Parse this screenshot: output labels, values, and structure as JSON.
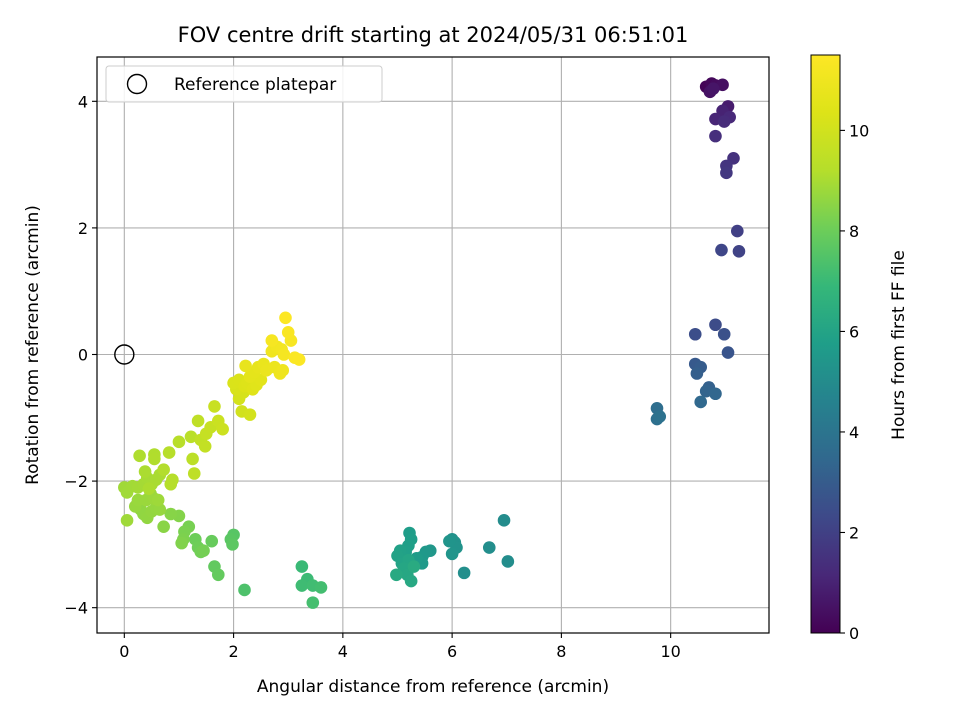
{
  "chart_data": {
    "type": "scatter",
    "title": "FOV centre drift starting at 2024/05/31 06:51:01",
    "xlabel": "Angular distance from reference (arcmin)",
    "ylabel": "Rotation from reference (arcmin)",
    "xlim": [
      -0.5,
      11.8
    ],
    "ylim": [
      -4.4,
      4.7
    ],
    "xticks": [
      0,
      2,
      4,
      6,
      8,
      10
    ],
    "yticks": [
      -4,
      -2,
      0,
      2,
      4
    ],
    "grid": true,
    "legend": {
      "placement": "top-left",
      "entries": [
        "Reference platepar"
      ]
    },
    "reference_point": {
      "x": 0,
      "y": 0
    },
    "colorbar": {
      "label": "Hours from first FF file",
      "range": [
        0,
        11.5
      ],
      "ticks": [
        0,
        2,
        4,
        6,
        8,
        10
      ],
      "colormap": "viridis"
    },
    "points": [
      {
        "x": 10.65,
        "y": 4.23,
        "c": 0.1
      },
      {
        "x": 10.75,
        "y": 4.28,
        "c": 0.2
      },
      {
        "x": 10.82,
        "y": 4.25,
        "c": 0.3
      },
      {
        "x": 10.95,
        "y": 4.26,
        "c": 0.4
      },
      {
        "x": 10.72,
        "y": 4.15,
        "c": 0.5
      },
      {
        "x": 10.78,
        "y": 4.2,
        "c": 0.6
      },
      {
        "x": 11.05,
        "y": 3.92,
        "c": 0.8
      },
      {
        "x": 11.0,
        "y": 3.78,
        "c": 0.9
      },
      {
        "x": 10.95,
        "y": 3.85,
        "c": 1.0
      },
      {
        "x": 10.82,
        "y": 3.72,
        "c": 1.1
      },
      {
        "x": 11.08,
        "y": 3.75,
        "c": 1.2
      },
      {
        "x": 10.98,
        "y": 3.68,
        "c": 1.3
      },
      {
        "x": 10.82,
        "y": 3.45,
        "c": 1.4
      },
      {
        "x": 11.15,
        "y": 3.1,
        "c": 1.5
      },
      {
        "x": 11.02,
        "y": 2.98,
        "c": 1.6
      },
      {
        "x": 11.02,
        "y": 2.87,
        "c": 1.7
      },
      {
        "x": 11.22,
        "y": 1.95,
        "c": 2.0
      },
      {
        "x": 11.25,
        "y": 1.63,
        "c": 2.1
      },
      {
        "x": 10.93,
        "y": 1.65,
        "c": 2.2
      },
      {
        "x": 10.82,
        "y": 0.47,
        "c": 2.4
      },
      {
        "x": 10.45,
        "y": 0.32,
        "c": 2.5
      },
      {
        "x": 10.98,
        "y": 0.32,
        "c": 2.6
      },
      {
        "x": 11.05,
        "y": 0.03,
        "c": 2.7
      },
      {
        "x": 10.45,
        "y": -0.15,
        "c": 2.9
      },
      {
        "x": 10.55,
        "y": -0.2,
        "c": 3.0
      },
      {
        "x": 10.48,
        "y": -0.3,
        "c": 3.1
      },
      {
        "x": 10.7,
        "y": -0.52,
        "c": 3.2
      },
      {
        "x": 10.65,
        "y": -0.58,
        "c": 3.3
      },
      {
        "x": 10.82,
        "y": -0.62,
        "c": 3.4
      },
      {
        "x": 10.55,
        "y": -0.75,
        "c": 3.5
      },
      {
        "x": 9.75,
        "y": -0.85,
        "c": 3.7
      },
      {
        "x": 9.75,
        "y": -1.02,
        "c": 3.8
      },
      {
        "x": 9.8,
        "y": -0.98,
        "c": 3.9
      },
      {
        "x": 6.95,
        "y": -2.62,
        "c": 5.0
      },
      {
        "x": 7.02,
        "y": -3.27,
        "c": 5.05
      },
      {
        "x": 6.68,
        "y": -3.05,
        "c": 5.1
      },
      {
        "x": 6.22,
        "y": -3.45,
        "c": 5.15
      },
      {
        "x": 6.0,
        "y": -2.92,
        "c": 5.2
      },
      {
        "x": 6.05,
        "y": -2.97,
        "c": 5.25
      },
      {
        "x": 6.08,
        "y": -3.05,
        "c": 5.3
      },
      {
        "x": 5.95,
        "y": -2.95,
        "c": 5.35
      },
      {
        "x": 6.0,
        "y": -3.15,
        "c": 5.4
      },
      {
        "x": 5.6,
        "y": -3.1,
        "c": 5.45
      },
      {
        "x": 5.52,
        "y": -3.12,
        "c": 5.5
      },
      {
        "x": 5.45,
        "y": -3.2,
        "c": 5.55
      },
      {
        "x": 5.45,
        "y": -3.3,
        "c": 5.6
      },
      {
        "x": 5.35,
        "y": -3.22,
        "c": 5.65
      },
      {
        "x": 5.22,
        "y": -2.82,
        "c": 5.7
      },
      {
        "x": 5.25,
        "y": -2.92,
        "c": 5.75
      },
      {
        "x": 5.2,
        "y": -3.02,
        "c": 5.8
      },
      {
        "x": 5.15,
        "y": -3.12,
        "c": 5.85
      },
      {
        "x": 5.05,
        "y": -3.1,
        "c": 5.9
      },
      {
        "x": 5.0,
        "y": -3.18,
        "c": 5.95
      },
      {
        "x": 5.08,
        "y": -3.3,
        "c": 6.0
      },
      {
        "x": 5.2,
        "y": -3.25,
        "c": 6.05
      },
      {
        "x": 5.12,
        "y": -3.38,
        "c": 6.1
      },
      {
        "x": 5.18,
        "y": -3.48,
        "c": 6.15
      },
      {
        "x": 5.25,
        "y": -3.58,
        "c": 6.2
      },
      {
        "x": 4.98,
        "y": -3.48,
        "c": 6.25
      },
      {
        "x": 5.3,
        "y": -3.35,
        "c": 6.3
      },
      {
        "x": 3.25,
        "y": -3.35,
        "c": 7.0
      },
      {
        "x": 3.35,
        "y": -3.55,
        "c": 7.05
      },
      {
        "x": 3.25,
        "y": -3.65,
        "c": 7.1
      },
      {
        "x": 3.45,
        "y": -3.65,
        "c": 7.15
      },
      {
        "x": 3.6,
        "y": -3.68,
        "c": 7.2
      },
      {
        "x": 3.45,
        "y": -3.92,
        "c": 7.25
      },
      {
        "x": 2.2,
        "y": -3.72,
        "c": 7.4
      },
      {
        "x": 2.0,
        "y": -2.85,
        "c": 7.6
      },
      {
        "x": 1.95,
        "y": -2.92,
        "c": 7.65
      },
      {
        "x": 1.98,
        "y": -3.0,
        "c": 7.7
      },
      {
        "x": 1.65,
        "y": -3.35,
        "c": 7.8
      },
      {
        "x": 1.72,
        "y": -3.48,
        "c": 7.85
      },
      {
        "x": 1.6,
        "y": -2.95,
        "c": 7.9
      },
      {
        "x": 1.3,
        "y": -2.92,
        "c": 8.0
      },
      {
        "x": 1.35,
        "y": -3.05,
        "c": 8.05
      },
      {
        "x": 1.4,
        "y": -3.12,
        "c": 8.1
      },
      {
        "x": 1.45,
        "y": -3.1,
        "c": 8.15
      },
      {
        "x": 1.18,
        "y": -2.72,
        "c": 8.2
      },
      {
        "x": 1.1,
        "y": -2.8,
        "c": 8.25
      },
      {
        "x": 1.08,
        "y": -2.92,
        "c": 8.3
      },
      {
        "x": 1.05,
        "y": -2.98,
        "c": 8.35
      },
      {
        "x": 1.0,
        "y": -2.55,
        "c": 8.4
      },
      {
        "x": 0.85,
        "y": -2.52,
        "c": 8.45
      },
      {
        "x": 0.72,
        "y": -2.72,
        "c": 8.5
      },
      {
        "x": 0.3,
        "y": -2.45,
        "c": 8.6
      },
      {
        "x": 0.35,
        "y": -2.52,
        "c": 8.62
      },
      {
        "x": 0.42,
        "y": -2.58,
        "c": 8.64
      },
      {
        "x": 0.5,
        "y": -2.48,
        "c": 8.66
      },
      {
        "x": 0.58,
        "y": -2.42,
        "c": 8.68
      },
      {
        "x": 0.65,
        "y": -2.45,
        "c": 8.7
      },
      {
        "x": 0.2,
        "y": -2.4,
        "c": 8.72
      },
      {
        "x": 0.25,
        "y": -2.3,
        "c": 8.74
      },
      {
        "x": 0.4,
        "y": -2.3,
        "c": 8.76
      },
      {
        "x": 0.48,
        "y": -2.2,
        "c": 8.78
      },
      {
        "x": 0.55,
        "y": -2.28,
        "c": 8.8
      },
      {
        "x": 0.62,
        "y": -2.3,
        "c": 8.82
      },
      {
        "x": 0.05,
        "y": -2.62,
        "c": 8.84
      },
      {
        "x": 0.0,
        "y": -2.1,
        "c": 8.86
      },
      {
        "x": 0.05,
        "y": -2.18,
        "c": 8.88
      },
      {
        "x": 0.15,
        "y": -2.08,
        "c": 8.9
      },
      {
        "x": 0.25,
        "y": -2.1,
        "c": 8.92
      },
      {
        "x": 0.35,
        "y": -2.05,
        "c": 8.94
      },
      {
        "x": 0.42,
        "y": -1.95,
        "c": 8.96
      },
      {
        "x": 0.5,
        "y": -2.05,
        "c": 8.98
      },
      {
        "x": 0.58,
        "y": -1.98,
        "c": 9.0
      },
      {
        "x": 0.65,
        "y": -1.9,
        "c": 9.02
      },
      {
        "x": 0.38,
        "y": -1.85,
        "c": 9.04
      },
      {
        "x": 0.45,
        "y": -2.12,
        "c": 9.06
      },
      {
        "x": 0.28,
        "y": -1.6,
        "c": 9.1
      },
      {
        "x": 0.55,
        "y": -1.58,
        "c": 9.12
      },
      {
        "x": 0.55,
        "y": -1.65,
        "c": 9.14
      },
      {
        "x": 0.72,
        "y": -1.82,
        "c": 9.16
      },
      {
        "x": 0.85,
        "y": -2.05,
        "c": 9.2
      },
      {
        "x": 0.88,
        "y": -1.98,
        "c": 9.22
      },
      {
        "x": 0.82,
        "y": -1.55,
        "c": 9.25
      },
      {
        "x": 1.0,
        "y": -1.38,
        "c": 9.3
      },
      {
        "x": 1.22,
        "y": -1.3,
        "c": 9.35
      },
      {
        "x": 1.25,
        "y": -1.65,
        "c": 9.4
      },
      {
        "x": 1.28,
        "y": -1.88,
        "c": 9.45
      },
      {
        "x": 1.35,
        "y": -1.05,
        "c": 9.5
      },
      {
        "x": 1.4,
        "y": -1.35,
        "c": 9.55
      },
      {
        "x": 1.48,
        "y": -1.45,
        "c": 9.6
      },
      {
        "x": 1.5,
        "y": -1.25,
        "c": 9.65
      },
      {
        "x": 1.58,
        "y": -1.15,
        "c": 9.7
      },
      {
        "x": 1.65,
        "y": -0.82,
        "c": 9.75
      },
      {
        "x": 1.72,
        "y": -1.05,
        "c": 9.8
      },
      {
        "x": 1.8,
        "y": -1.18,
        "c": 9.85
      },
      {
        "x": 2.15,
        "y": -0.9,
        "c": 10.0
      },
      {
        "x": 2.3,
        "y": -0.95,
        "c": 10.05
      },
      {
        "x": 2.1,
        "y": -0.7,
        "c": 10.1
      },
      {
        "x": 2.18,
        "y": -0.6,
        "c": 10.15
      },
      {
        "x": 2.05,
        "y": -0.55,
        "c": 10.2
      },
      {
        "x": 2.0,
        "y": -0.45,
        "c": 10.25
      },
      {
        "x": 2.1,
        "y": -0.4,
        "c": 10.3
      },
      {
        "x": 2.2,
        "y": -0.5,
        "c": 10.35
      },
      {
        "x": 2.25,
        "y": -0.45,
        "c": 10.4
      },
      {
        "x": 2.35,
        "y": -0.55,
        "c": 10.45
      },
      {
        "x": 2.42,
        "y": -0.48,
        "c": 10.5
      },
      {
        "x": 2.5,
        "y": -0.4,
        "c": 10.55
      },
      {
        "x": 2.3,
        "y": -0.35,
        "c": 10.6
      },
      {
        "x": 2.38,
        "y": -0.28,
        "c": 10.65
      },
      {
        "x": 2.45,
        "y": -0.2,
        "c": 10.7
      },
      {
        "x": 2.22,
        "y": -0.18,
        "c": 10.75
      },
      {
        "x": 2.55,
        "y": -0.15,
        "c": 10.8
      },
      {
        "x": 2.6,
        "y": -0.25,
        "c": 10.85
      },
      {
        "x": 2.75,
        "y": -0.2,
        "c": 10.9
      },
      {
        "x": 2.85,
        "y": -0.3,
        "c": 10.95
      },
      {
        "x": 2.9,
        "y": -0.25,
        "c": 11.0
      },
      {
        "x": 2.7,
        "y": 0.05,
        "c": 11.05
      },
      {
        "x": 2.8,
        "y": 0.12,
        "c": 11.1
      },
      {
        "x": 2.88,
        "y": 0.08,
        "c": 11.15
      },
      {
        "x": 2.92,
        "y": 0.0,
        "c": 11.2
      },
      {
        "x": 2.7,
        "y": 0.22,
        "c": 11.25
      },
      {
        "x": 3.05,
        "y": 0.22,
        "c": 11.3
      },
      {
        "x": 3.0,
        "y": 0.35,
        "c": 11.35
      },
      {
        "x": 3.12,
        "y": -0.05,
        "c": 11.4
      },
      {
        "x": 3.2,
        "y": -0.08,
        "c": 11.42
      },
      {
        "x": 2.95,
        "y": 0.58,
        "c": 11.45
      }
    ]
  }
}
